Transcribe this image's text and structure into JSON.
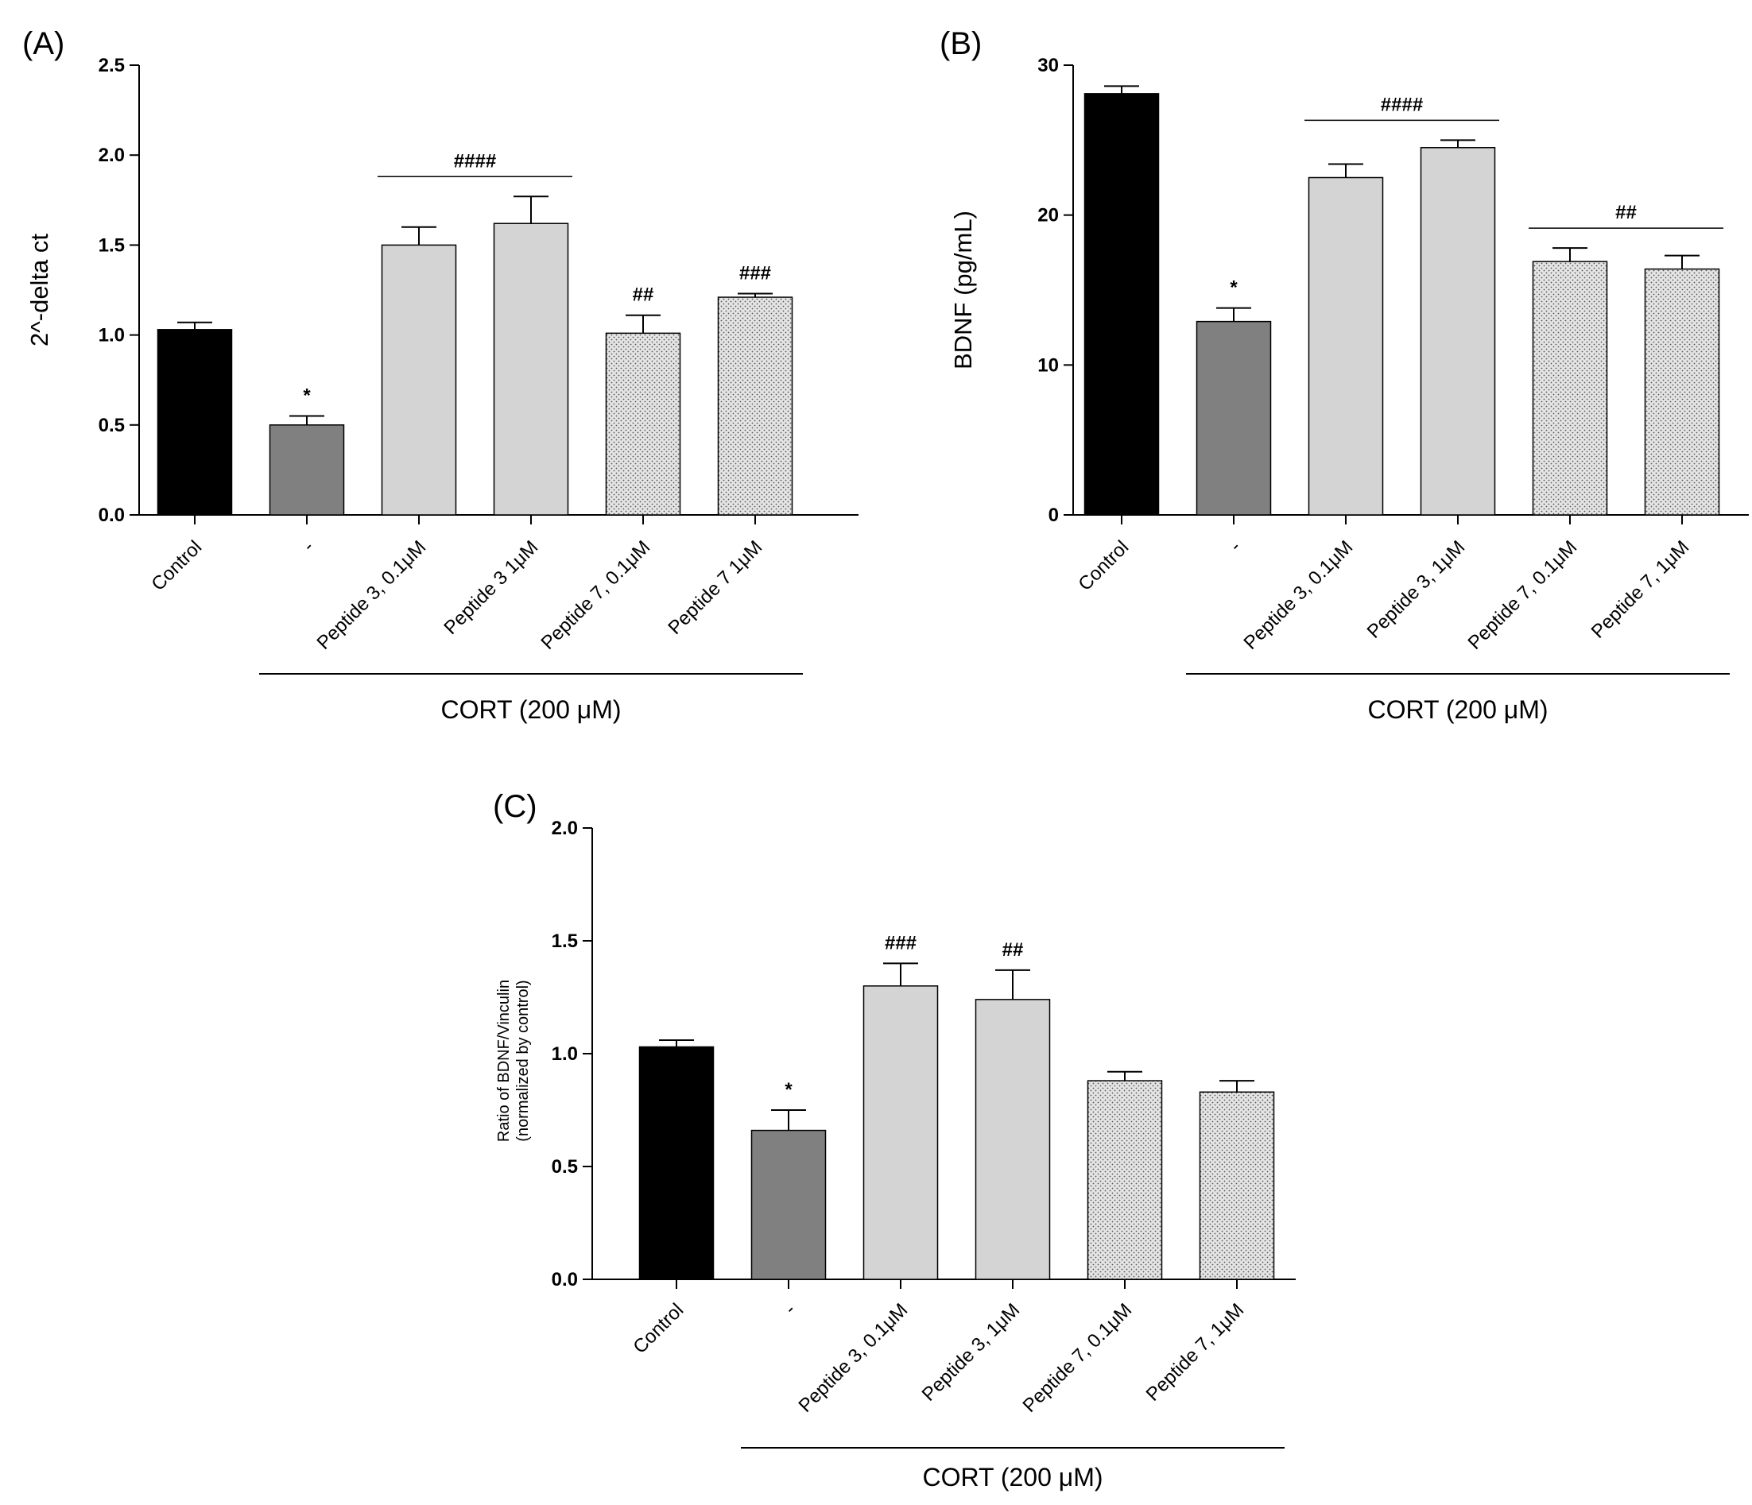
{
  "chart_data": [
    {
      "panel_label": "(A)",
      "type": "bar",
      "ylabel": "2^-delta ct",
      "ylim": [
        0,
        2.5
      ],
      "yticks": [
        0.0,
        0.5,
        1.0,
        1.5,
        2.0,
        2.5
      ],
      "ytick_labels": [
        "0.0",
        "0.5",
        "1.0",
        "1.5",
        "2.0",
        "2.5"
      ],
      "categories": [
        "Control",
        "-",
        "Peptide 3, 0.1μM",
        "Peptide 3 1μM",
        "Peptide 7, 0.1μM",
        "Peptide 7 1μM"
      ],
      "values": [
        1.03,
        0.5,
        1.5,
        1.62,
        1.01,
        1.21
      ],
      "errors": [
        0.04,
        0.05,
        0.1,
        0.15,
        0.1,
        0.02
      ],
      "fills": [
        "black",
        "darkgray",
        "lightgray",
        "lightgray",
        "dotted",
        "dotted"
      ],
      "annotations": [
        {
          "text": "*",
          "bar": 1
        },
        {
          "text": "##",
          "bar": 4
        },
        {
          "text": "###",
          "bar": 5
        }
      ],
      "brackets": [
        {
          "text": "####",
          "from": 2,
          "to": 3
        }
      ],
      "group_label": "CORT (200 μM)",
      "group_from": 1,
      "group_to": 5
    },
    {
      "panel_label": "(B)",
      "type": "bar",
      "ylabel": "BDNF (pg/mL)",
      "ylim": [
        0,
        30
      ],
      "yticks": [
        0,
        10,
        20,
        30
      ],
      "ytick_labels": [
        "0",
        "10",
        "20",
        "30"
      ],
      "categories": [
        "Control",
        "-",
        "Peptide 3, 0.1μM",
        "Peptide 3, 1μM",
        "Peptide 7, 0.1μM",
        "Peptide 7, 1μM"
      ],
      "values": [
        28.1,
        12.9,
        22.5,
        24.5,
        16.9,
        16.4
      ],
      "errors": [
        0.5,
        0.9,
        0.9,
        0.5,
        0.9,
        0.9
      ],
      "fills": [
        "black",
        "darkgray",
        "lightgray",
        "lightgray",
        "dotted",
        "dotted"
      ],
      "annotations": [
        {
          "text": "*",
          "bar": 1
        }
      ],
      "brackets": [
        {
          "text": "####",
          "from": 2,
          "to": 3
        },
        {
          "text": "##",
          "from": 4,
          "to": 5
        }
      ],
      "group_label": "CORT (200 μM)",
      "group_from": 1,
      "group_to": 5
    },
    {
      "panel_label": "(C)",
      "type": "bar",
      "ylabel": "Ratio of BDNF/Vinculin",
      "ylabel2": "(normalized by control)",
      "ylim": [
        0,
        2.0
      ],
      "yticks": [
        0.0,
        0.5,
        1.0,
        1.5,
        2.0
      ],
      "ytick_labels": [
        "0.0",
        "0.5",
        "1.0",
        "1.5",
        "2.0"
      ],
      "categories": [
        "Control",
        "-",
        "Peptide 3, 0.1μM",
        "Peptide 3, 1μM",
        "Peptide 7, 0.1μM",
        "Peptide 7, 1μM"
      ],
      "values": [
        1.03,
        0.66,
        1.3,
        1.24,
        0.88,
        0.83
      ],
      "errors": [
        0.03,
        0.09,
        0.1,
        0.13,
        0.04,
        0.05
      ],
      "fills": [
        "black",
        "darkgray",
        "lightgray",
        "lightgray",
        "dotted",
        "dotted"
      ],
      "annotations": [
        {
          "text": "*",
          "bar": 1
        },
        {
          "text": "###",
          "bar": 2
        },
        {
          "text": "##",
          "bar": 3
        }
      ],
      "brackets": [],
      "group_label": "CORT (200 μM)",
      "group_from": 1,
      "group_to": 5
    }
  ]
}
